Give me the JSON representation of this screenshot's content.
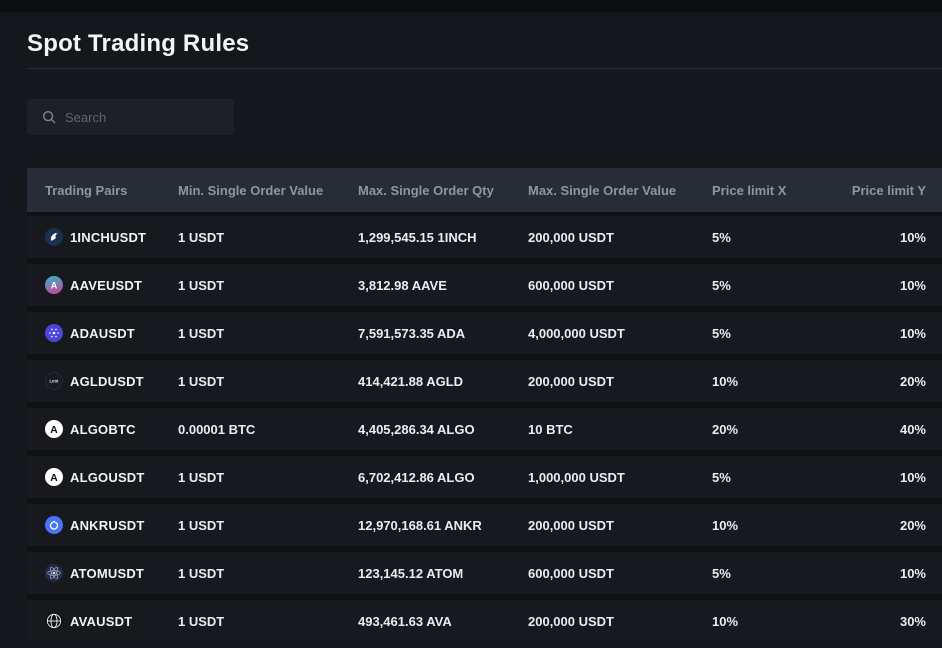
{
  "page": {
    "title": "Spot Trading Rules",
    "search_placeholder": "Search"
  },
  "colors": {
    "page_background": "#15171c",
    "top_strip": "#0b0d10",
    "header_background": "#272c36",
    "header_text": "#8d96a8",
    "row_background": "#17191f",
    "row_gap": "#0f1115",
    "body_text": "#eef1f4",
    "divider": "#2a2e35",
    "search_background": "#1d2027",
    "placeholder_text": "#5f6773"
  },
  "icons": {
    "search": "search-icon"
  },
  "table": {
    "columns": [
      {
        "id": "pair",
        "label": "Trading Pairs"
      },
      {
        "id": "min",
        "label": "Min. Single Order Value"
      },
      {
        "id": "max_qty",
        "label": "Max. Single Order Qty"
      },
      {
        "id": "max_val",
        "label": "Max. Single Order Value"
      },
      {
        "id": "limx",
        "label": "Price limit X"
      },
      {
        "id": "limy",
        "label": "Price limit Y"
      }
    ],
    "rows": [
      {
        "pair": "1INCHUSDT",
        "icon": "1inch-coin-icon",
        "min": "1 USDT",
        "max_qty": "1,299,545.15 1INCH",
        "max_val": "200,000 USDT",
        "limx": "5%",
        "limy": "10%"
      },
      {
        "pair": "AAVEUSDT",
        "icon": "aave-coin-icon",
        "min": "1 USDT",
        "max_qty": "3,812.98 AAVE",
        "max_val": "600,000 USDT",
        "limx": "5%",
        "limy": "10%"
      },
      {
        "pair": "ADAUSDT",
        "icon": "ada-coin-icon",
        "min": "1 USDT",
        "max_qty": "7,591,573.35 ADA",
        "max_val": "4,000,000 USDT",
        "limx": "5%",
        "limy": "10%"
      },
      {
        "pair": "AGLDUSDT",
        "icon": "agld-coin-icon",
        "min": "1 USDT",
        "max_qty": "414,421.88 AGLD",
        "max_val": "200,000 USDT",
        "limx": "10%",
        "limy": "20%"
      },
      {
        "pair": "ALGOBTC",
        "icon": "algo-coin-icon",
        "min": "0.00001 BTC",
        "max_qty": "4,405,286.34 ALGO",
        "max_val": "10 BTC",
        "limx": "20%",
        "limy": "40%"
      },
      {
        "pair": "ALGOUSDT",
        "icon": "algo-coin-icon",
        "min": "1 USDT",
        "max_qty": "6,702,412.86 ALGO",
        "max_val": "1,000,000 USDT",
        "limx": "5%",
        "limy": "10%"
      },
      {
        "pair": "ANKRUSDT",
        "icon": "ankr-coin-icon",
        "min": "1 USDT",
        "max_qty": "12,970,168.61 ANKR",
        "max_val": "200,000 USDT",
        "limx": "10%",
        "limy": "20%"
      },
      {
        "pair": "ATOMUSDT",
        "icon": "atom-coin-icon",
        "min": "1 USDT",
        "max_qty": "123,145.12 ATOM",
        "max_val": "600,000 USDT",
        "limx": "5%",
        "limy": "10%"
      },
      {
        "pair": "AVAUSDT",
        "icon": "ava-coin-icon",
        "min": "1 USDT",
        "max_qty": "493,461.63 AVA",
        "max_val": "200,000 USDT",
        "limx": "10%",
        "limy": "30%"
      }
    ]
  }
}
